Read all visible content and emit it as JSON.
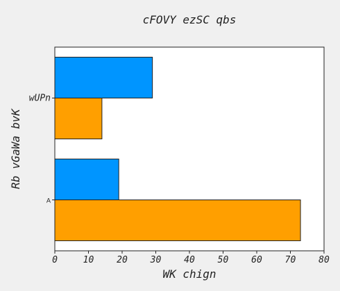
{
  "chart_data": {
    "type": "bar",
    "orientation": "horizontal",
    "title": "cFOVY ezSC qbs",
    "xlabel": "WK chign",
    "ylabel": "Rb vGaWa  bvK",
    "categories": [
      "A",
      "wUPn"
    ],
    "series": [
      {
        "values": [
          73,
          14
        ],
        "color": "#ff9f00"
      },
      {
        "values": [
          19,
          29
        ],
        "color": "#0095ff"
      }
    ],
    "xlim": [
      0,
      80
    ],
    "xticks": [
      0,
      10,
      20,
      30,
      40,
      50,
      60,
      70,
      80
    ],
    "grid": false,
    "legend": "none"
  }
}
